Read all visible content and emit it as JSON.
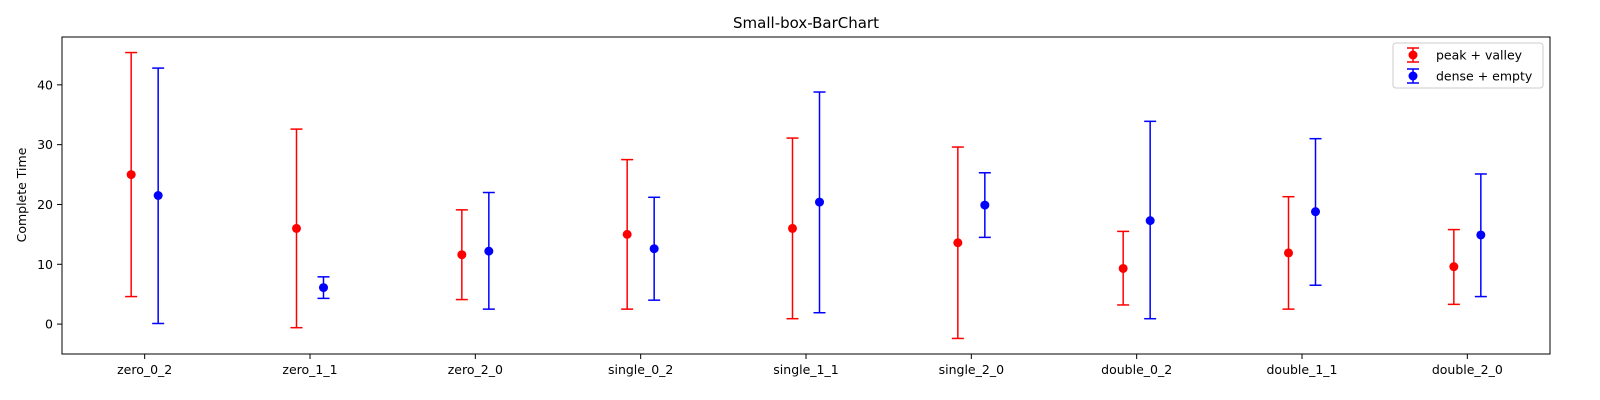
{
  "chart_data": {
    "type": "errorbar",
    "title": "Small-box-BarChart",
    "xlabel": "",
    "ylabel": "Complete Time",
    "ylim": [
      -5,
      48
    ],
    "yticks": [
      0,
      10,
      20,
      30,
      40
    ],
    "grid": false,
    "legend_position": "top-right",
    "categories": [
      "zero_0_2",
      "zero_1_1",
      "zero_2_0",
      "single_0_2",
      "single_1_1",
      "single_2_0",
      "double_0_2",
      "double_1_1",
      "double_2_0"
    ],
    "series": [
      {
        "name": "peak + valley",
        "color": "#ff0000",
        "values": [
          25.0,
          16.0,
          11.6,
          15.0,
          16.0,
          13.6,
          9.3,
          11.9,
          9.6
        ],
        "lower": [
          4.6,
          -0.6,
          4.1,
          2.5,
          0.9,
          -2.4,
          3.2,
          2.5,
          3.3
        ],
        "upper": [
          45.4,
          32.6,
          19.1,
          27.5,
          31.1,
          29.6,
          15.5,
          21.3,
          15.8
        ]
      },
      {
        "name": "dense + empty",
        "color": "#0000ff",
        "values": [
          21.5,
          6.1,
          12.2,
          12.6,
          20.4,
          19.9,
          17.3,
          18.8,
          14.9
        ],
        "lower": [
          0.1,
          4.3,
          2.5,
          4.0,
          1.9,
          14.5,
          0.9,
          6.5,
          4.6
        ],
        "upper": [
          42.8,
          7.9,
          22.0,
          21.2,
          38.8,
          25.3,
          33.9,
          31.0,
          25.1
        ]
      }
    ]
  }
}
